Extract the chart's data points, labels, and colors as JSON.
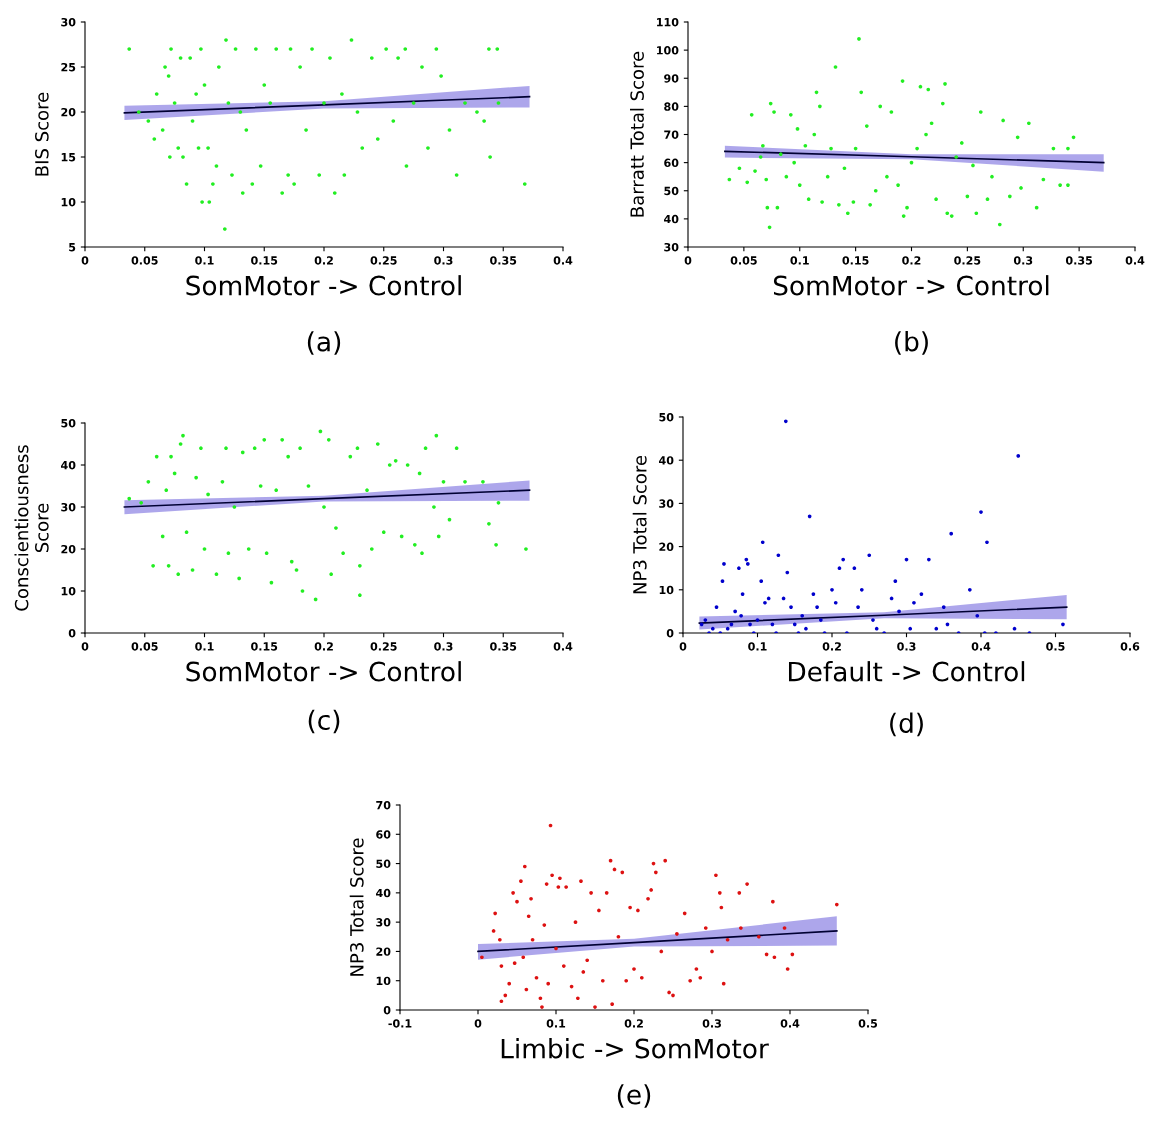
{
  "chart_data": [
    {
      "type": "scatter",
      "title": "(a)",
      "xlabel": "SomMotor -> Control",
      "ylabel": "BIS Score",
      "xlim": [
        0,
        0.4
      ],
      "xticks": [
        0,
        0.05,
        0.1,
        0.15,
        0.2,
        0.25,
        0.3,
        0.35,
        0.4
      ],
      "ylim": [
        5,
        30
      ],
      "yticks": [
        5,
        10,
        15,
        20,
        25,
        30
      ],
      "grid": false,
      "marker": "circle",
      "series": [
        {
          "color": "#22ee22",
          "x": [
            0.037,
            0.045,
            0.053,
            0.058,
            0.06,
            0.065,
            0.067,
            0.07,
            0.071,
            0.072,
            0.075,
            0.078,
            0.08,
            0.082,
            0.085,
            0.088,
            0.09,
            0.093,
            0.095,
            0.097,
            0.098,
            0.1,
            0.103,
            0.104,
            0.107,
            0.11,
            0.112,
            0.117,
            0.118,
            0.12,
            0.123,
            0.126,
            0.13,
            0.132,
            0.135,
            0.14,
            0.143,
            0.147,
            0.15,
            0.155,
            0.16,
            0.165,
            0.17,
            0.172,
            0.175,
            0.18,
            0.185,
            0.19,
            0.196,
            0.2,
            0.205,
            0.209,
            0.215,
            0.217,
            0.223,
            0.228,
            0.232,
            0.24,
            0.245,
            0.252,
            0.258,
            0.262,
            0.268,
            0.269,
            0.275,
            0.282,
            0.287,
            0.294,
            0.298,
            0.305,
            0.311,
            0.318,
            0.328,
            0.334,
            0.338,
            0.339,
            0.345,
            0.346,
            0.368
          ],
          "values": [
            27,
            20,
            19,
            17,
            22,
            18,
            25,
            24,
            15,
            27,
            21,
            16,
            26,
            15,
            12,
            26,
            19,
            22,
            16,
            27,
            10,
            23,
            16,
            10,
            12,
            14,
            25,
            7,
            28,
            21,
            13,
            27,
            20,
            11,
            18,
            12,
            27,
            14,
            23,
            21,
            27,
            11,
            13,
            27,
            12,
            25,
            18,
            27,
            13,
            21,
            26,
            11,
            22,
            13,
            28,
            20,
            16,
            26,
            17,
            27,
            19,
            26,
            27,
            14,
            21,
            25,
            16,
            27,
            24,
            18,
            13,
            21,
            20,
            19,
            27,
            15,
            27,
            21,
            12
          ]
        },
        {
          "type": "line",
          "marker": "none",
          "color": "#000033",
          "line_style": "solid",
          "x": [
            0.033,
            0.2,
            0.372
          ],
          "values": [
            19.9,
            20.8,
            21.7
          ],
          "lower": [
            19.1,
            20.4,
            20.5
          ],
          "upper": [
            20.7,
            21.2,
            22.9
          ]
        }
      ]
    },
    {
      "type": "scatter",
      "title": "(b)",
      "xlabel": "SomMotor -> Control",
      "ylabel": "Barratt Total Score",
      "xlim": [
        0,
        0.4
      ],
      "xticks": [
        0,
        0.05,
        0.1,
        0.15,
        0.2,
        0.25,
        0.3,
        0.35,
        0.4
      ],
      "ylim": [
        30,
        110
      ],
      "yticks": [
        30,
        40,
        50,
        60,
        70,
        80,
        90,
        100,
        110
      ],
      "grid": false,
      "marker": "circle",
      "series": [
        {
          "color": "#22ee22",
          "x": [
            0.037,
            0.046,
            0.053,
            0.057,
            0.06,
            0.065,
            0.067,
            0.07,
            0.071,
            0.073,
            0.074,
            0.077,
            0.08,
            0.083,
            0.088,
            0.092,
            0.095,
            0.098,
            0.1,
            0.105,
            0.108,
            0.113,
            0.115,
            0.118,
            0.12,
            0.125,
            0.128,
            0.132,
            0.135,
            0.14,
            0.143,
            0.148,
            0.15,
            0.153,
            0.155,
            0.16,
            0.163,
            0.168,
            0.172,
            0.178,
            0.182,
            0.188,
            0.192,
            0.193,
            0.196,
            0.2,
            0.205,
            0.208,
            0.213,
            0.215,
            0.218,
            0.222,
            0.228,
            0.23,
            0.232,
            0.236,
            0.24,
            0.245,
            0.25,
            0.255,
            0.258,
            0.262,
            0.268,
            0.272,
            0.279,
            0.282,
            0.288,
            0.295,
            0.298,
            0.305,
            0.312,
            0.318,
            0.327,
            0.333,
            0.34,
            0.345,
            0.34
          ],
          "values": [
            54,
            58,
            53,
            77,
            57,
            62,
            66,
            54,
            44,
            37,
            81,
            78,
            44,
            63,
            55,
            77,
            60,
            72,
            52,
            66,
            47,
            70,
            85,
            80,
            46,
            55,
            65,
            94,
            45,
            58,
            42,
            46,
            65,
            104,
            85,
            73,
            45,
            50,
            80,
            55,
            78,
            52,
            89,
            41,
            44,
            60,
            65,
            87,
            70,
            86,
            74,
            47,
            81,
            88,
            42,
            41,
            62,
            67,
            48,
            59,
            42,
            78,
            47,
            55,
            38,
            75,
            48,
            69,
            51,
            74,
            44,
            54,
            65,
            52,
            52,
            69,
            65
          ]
        },
        {
          "type": "line",
          "marker": "none",
          "color": "#000033",
          "line_style": "solid",
          "x": [
            0.033,
            0.2,
            0.372
          ],
          "values": [
            64,
            62.1,
            60
          ],
          "lower": [
            61.8,
            61.2,
            56.8
          ],
          "upper": [
            66,
            63,
            63
          ]
        }
      ]
    },
    {
      "type": "scatter",
      "title": "(c)",
      "xlabel": "SomMotor -> Control",
      "ylabel": "Conscientiousness\nScore",
      "xlim": [
        0,
        0.4
      ],
      "xticks": [
        0,
        0.05,
        0.1,
        0.15,
        0.2,
        0.25,
        0.3,
        0.35,
        0.4
      ],
      "ylim": [
        0,
        50
      ],
      "yticks": [
        0,
        10,
        20,
        30,
        40,
        50
      ],
      "grid": false,
      "marker": "circle",
      "series": [
        {
          "color": "#22ee22",
          "x": [
            0.037,
            0.047,
            0.053,
            0.057,
            0.06,
            0.065,
            0.068,
            0.07,
            0.072,
            0.075,
            0.078,
            0.08,
            0.082,
            0.085,
            0.09,
            0.093,
            0.097,
            0.1,
            0.103,
            0.11,
            0.115,
            0.118,
            0.12,
            0.125,
            0.129,
            0.132,
            0.137,
            0.142,
            0.147,
            0.15,
            0.152,
            0.156,
            0.16,
            0.165,
            0.17,
            0.173,
            0.177,
            0.18,
            0.182,
            0.187,
            0.193,
            0.197,
            0.2,
            0.204,
            0.206,
            0.21,
            0.216,
            0.222,
            0.228,
            0.23,
            0.23,
            0.236,
            0.24,
            0.245,
            0.25,
            0.255,
            0.26,
            0.265,
            0.27,
            0.276,
            0.28,
            0.282,
            0.285,
            0.292,
            0.294,
            0.296,
            0.3,
            0.305,
            0.311,
            0.318,
            0.333,
            0.338,
            0.344,
            0.346,
            0.369
          ],
          "values": [
            32,
            31,
            36,
            16,
            42,
            23,
            34,
            16,
            42,
            38,
            14,
            45,
            47,
            24,
            15,
            37,
            44,
            20,
            33,
            14,
            36,
            44,
            19,
            30,
            13,
            43,
            20,
            44,
            35,
            46,
            19,
            12,
            34,
            46,
            42,
            17,
            15,
            44,
            10,
            35,
            8,
            48,
            30,
            46,
            14,
            25,
            19,
            42,
            44,
            9,
            16,
            34,
            20,
            45,
            24,
            40,
            41,
            23,
            40,
            21,
            38,
            19,
            44,
            30,
            47,
            23,
            36,
            27,
            44,
            36,
            36,
            26,
            21,
            31,
            20
          ]
        },
        {
          "type": "line",
          "marker": "none",
          "color": "#000033",
          "line_style": "solid",
          "x": [
            0.033,
            0.2,
            0.372
          ],
          "values": [
            30,
            32,
            34
          ],
          "lower": [
            28.3,
            31.3,
            31.5
          ],
          "upper": [
            31.6,
            32.7,
            36.3
          ]
        }
      ]
    },
    {
      "type": "scatter",
      "title": "(d)",
      "xlabel": "Default -> Control",
      "ylabel": "NP3 Total Score",
      "xlim": [
        0,
        0.6
      ],
      "xticks": [
        0,
        0.1,
        0.2,
        0.3,
        0.4,
        0.5,
        0.6
      ],
      "ylim": [
        0,
        50
      ],
      "yticks": [
        0,
        10,
        20,
        30,
        40,
        50
      ],
      "grid": false,
      "marker": "circle",
      "series": [
        {
          "color": "#0000cc",
          "x": [
            0.025,
            0.03,
            0.035,
            0.04,
            0.045,
            0.05,
            0.053,
            0.055,
            0.06,
            0.065,
            0.07,
            0.075,
            0.078,
            0.08,
            0.085,
            0.087,
            0.09,
            0.095,
            0.1,
            0.105,
            0.107,
            0.11,
            0.115,
            0.12,
            0.125,
            0.128,
            0.135,
            0.138,
            0.14,
            0.145,
            0.15,
            0.155,
            0.16,
            0.165,
            0.17,
            0.175,
            0.18,
            0.185,
            0.19,
            0.2,
            0.205,
            0.21,
            0.215,
            0.22,
            0.23,
            0.235,
            0.24,
            0.25,
            0.255,
            0.26,
            0.27,
            0.28,
            0.285,
            0.29,
            0.3,
            0.305,
            0.31,
            0.32,
            0.33,
            0.34,
            0.35,
            0.355,
            0.36,
            0.37,
            0.385,
            0.395,
            0.4,
            0.405,
            0.408,
            0.42,
            0.445,
            0.45,
            0.465,
            0.51
          ],
          "values": [
            2,
            3,
            0,
            1,
            6,
            0,
            12,
            16,
            1,
            2,
            5,
            15,
            4,
            9,
            17,
            16,
            2,
            0,
            3,
            12,
            21,
            7,
            8,
            2,
            0,
            18,
            8,
            49,
            14,
            6,
            2,
            0,
            4,
            1,
            27,
            9,
            6,
            3,
            0,
            10,
            7,
            15,
            17,
            0,
            15,
            6,
            10,
            18,
            3,
            1,
            0,
            8,
            12,
            5,
            17,
            1,
            7,
            9,
            17,
            1,
            6,
            2,
            23,
            0,
            10,
            4,
            28,
            0,
            21,
            0,
            1,
            41,
            0,
            2
          ]
        },
        {
          "type": "line",
          "marker": "none",
          "color": "#000033",
          "line_style": "solid",
          "x": [
            0.022,
            0.27,
            0.515
          ],
          "values": [
            2.3,
            4.1,
            6.0
          ],
          "lower": [
            0.8,
            3.4,
            3.2
          ],
          "upper": [
            3.8,
            4.8,
            8.8
          ]
        }
      ]
    },
    {
      "type": "scatter",
      "title": "(e)",
      "xlabel": "Limbic -> SomMotor",
      "ylabel": "NP3 Total Score",
      "xlim": [
        -0.1,
        0.5
      ],
      "xticks": [
        -0.1,
        0,
        0.1,
        0.2,
        0.3,
        0.4,
        0.5
      ],
      "ylim": [
        0,
        70
      ],
      "yticks": [
        0,
        10,
        20,
        30,
        40,
        50,
        60,
        70
      ],
      "grid": false,
      "marker": "circle",
      "series": [
        {
          "color": "#dd1111",
          "x": [
            0.005,
            0.02,
            0.022,
            0.028,
            0.03,
            0.03,
            0.035,
            0.04,
            0.045,
            0.047,
            0.05,
            0.055,
            0.058,
            0.06,
            0.062,
            0.065,
            0.068,
            0.07,
            0.075,
            0.08,
            0.082,
            0.085,
            0.088,
            0.09,
            0.093,
            0.095,
            0.1,
            0.103,
            0.105,
            0.11,
            0.113,
            0.12,
            0.125,
            0.128,
            0.132,
            0.135,
            0.14,
            0.145,
            0.15,
            0.155,
            0.16,
            0.165,
            0.17,
            0.172,
            0.175,
            0.18,
            0.185,
            0.19,
            0.195,
            0.2,
            0.205,
            0.21,
            0.218,
            0.222,
            0.225,
            0.228,
            0.235,
            0.24,
            0.245,
            0.25,
            0.255,
            0.265,
            0.272,
            0.28,
            0.285,
            0.292,
            0.3,
            0.305,
            0.31,
            0.312,
            0.315,
            0.32,
            0.335,
            0.337,
            0.345,
            0.36,
            0.37,
            0.378,
            0.38,
            0.393,
            0.397,
            0.403,
            0.46
          ],
          "values": [
            18,
            27,
            33,
            24,
            3,
            15,
            5,
            9,
            40,
            16,
            37,
            44,
            18,
            49,
            7,
            32,
            38,
            24,
            11,
            4,
            1,
            29,
            43,
            9,
            63,
            46,
            21,
            42,
            45,
            15,
            42,
            8,
            30,
            4,
            44,
            13,
            17,
            40,
            1,
            34,
            10,
            40,
            51,
            2,
            48,
            25,
            47,
            10,
            35,
            14,
            34,
            11,
            38,
            41,
            50,
            47,
            20,
            51,
            6,
            5,
            26,
            33,
            10,
            14,
            11,
            28,
            20,
            46,
            40,
            35,
            9,
            24,
            40,
            28,
            43,
            25,
            19,
            37,
            18,
            28,
            14,
            19,
            36
          ]
        },
        {
          "type": "line",
          "marker": "none",
          "color": "#000033",
          "line_style": "solid",
          "x": [
            0.0,
            0.2,
            0.46
          ],
          "values": [
            20,
            23,
            27
          ],
          "lower": [
            17.2,
            21.7,
            22
          ],
          "upper": [
            22.5,
            24.3,
            32
          ]
        }
      ]
    }
  ]
}
